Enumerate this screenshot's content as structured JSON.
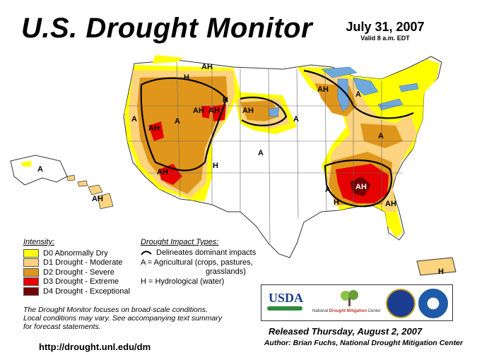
{
  "title": "U.S. Drought Monitor",
  "date": "July 31, 2007",
  "valid": "Valid 8 a.m. EDT",
  "legend": {
    "heading": "Intensity:",
    "items": [
      {
        "label": "D0 Abnormally Dry",
        "color": "#ffff00"
      },
      {
        "label": "D1 Drought - Moderate",
        "color": "#fcd37f"
      },
      {
        "label": "D2 Drought - Severe",
        "color": "#e0961a"
      },
      {
        "label": "D3 Drought - Extreme",
        "color": "#e60000"
      },
      {
        "label": "D4 Drought - Exceptional",
        "color": "#730000"
      }
    ]
  },
  "impact": {
    "heading": "Drought Impact Types:",
    "line1": "Delineates dominant impacts",
    "line2": "A = Agricultural (crops, pastures,",
    "line3": "grasslands)",
    "line4": "H = Hydrological (water)"
  },
  "map_labels": [
    "AH",
    "H",
    "AH",
    "A",
    "AH",
    "A",
    "AH",
    "AH",
    "A",
    "H",
    "AH",
    "A",
    "H",
    "A",
    "AH",
    "A",
    "AH",
    "A",
    "H",
    "AH",
    "A",
    "AH",
    "H"
  ],
  "note": {
    "line1": "The Drought Monitor focuses on broad-scale conditions.",
    "line2": "Local conditions may vary. See accompanying text summary",
    "line3": "for forecast statements."
  },
  "url": "http://drought.unl.edu/dm",
  "released": "Released Thursday, August 2, 2007",
  "author": "Author: Brian Fuchs, National Drought Mitigation Center",
  "logos": {
    "usda": "USDA",
    "ndmc_prefix": "National",
    "ndmc_main": "Drought Mitigation",
    "ndmc_suffix": "Center"
  }
}
